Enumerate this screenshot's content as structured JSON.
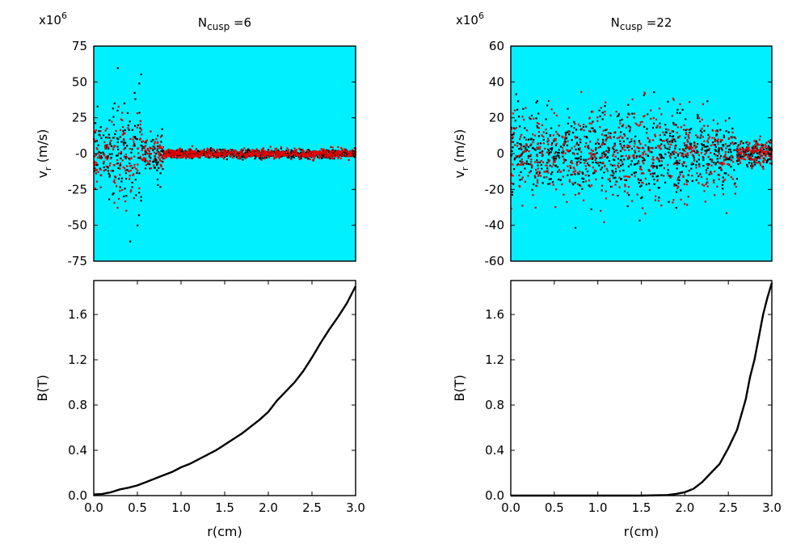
{
  "chart_data": [
    {
      "id": "vr-ncusp6",
      "type": "scatter",
      "title": "N",
      "title_sub": "cusp",
      "title_suffix": " =6",
      "ylabel": "v",
      "ylabel_sub": "r",
      "ylabel_suffix": " (m/s)",
      "multiplier": "x10",
      "multiplier_exp": "6",
      "xlabel": "",
      "xlim": [
        0,
        3
      ],
      "ylim": [
        -75,
        75
      ],
      "yticks": [
        75,
        50,
        25,
        0,
        -25,
        -50,
        -75
      ],
      "ytick_labels": [
        "75",
        "50",
        "25",
        "-0",
        "-25",
        "-50",
        "-75"
      ],
      "xtick_labels": [],
      "background": "#00f0ff",
      "grid": false,
      "series": [
        {
          "color": "#000000",
          "distribution": [
            [
              0.0,
              0.2,
              0,
              14
            ],
            [
              0.2,
              0.4,
              0,
              22
            ],
            [
              0.4,
              0.55,
              0,
              24
            ],
            [
              0.55,
              0.8,
              0,
              10
            ],
            [
              0.8,
              3.0,
              0,
              1.6
            ]
          ]
        },
        {
          "color": "#e00000",
          "distribution": [
            [
              0.0,
              0.2,
              0,
              12
            ],
            [
              0.2,
              0.4,
              0,
              18
            ],
            [
              0.4,
              0.55,
              0,
              18
            ],
            [
              0.55,
              0.8,
              0,
              6
            ],
            [
              0.8,
              3.0,
              0,
              1.8
            ]
          ]
        }
      ],
      "annotation": "Dense scatter of particle radial velocities; broad spread near r < 0.8 cm, narrow band near 0 beyond"
    },
    {
      "id": "vr-ncusp22",
      "type": "scatter",
      "title": "N",
      "title_sub": "cusp",
      "title_suffix": " =22",
      "ylabel": "v",
      "ylabel_sub": "r",
      "ylabel_suffix": " (m/s)",
      "multiplier": "x10",
      "multiplier_exp": "6",
      "xlabel": "",
      "xlim": [
        0,
        3
      ],
      "ylim": [
        -60,
        60
      ],
      "yticks": [
        60,
        40,
        20,
        0,
        -20,
        -40,
        -60
      ],
      "ytick_labels": [
        "60",
        "40",
        "20",
        "0",
        "-20",
        "-40",
        "-60"
      ],
      "xtick_labels": [],
      "background": "#00f0ff",
      "grid": false,
      "series": [
        {
          "color": "#000000",
          "distribution": [
            [
              0.0,
              0.5,
              0,
              12
            ],
            [
              0.5,
              2.0,
              0,
              13
            ],
            [
              2.0,
              2.6,
              0,
              10
            ],
            [
              2.6,
              3.0,
              0,
              4
            ]
          ]
        },
        {
          "color": "#e00000",
          "distribution": [
            [
              0.0,
              0.5,
              0,
              14
            ],
            [
              0.5,
              2.0,
              0,
              15
            ],
            [
              2.0,
              2.6,
              0,
              12
            ],
            [
              2.6,
              3.0,
              0,
              4
            ]
          ]
        }
      ],
      "annotation": "Broad scatter of radial velocities across whole radius, narrowing toward r = 3 cm"
    },
    {
      "id": "b-ncusp6",
      "type": "line",
      "ylabel": "B(T)",
      "xlabel": "r(cm)",
      "xlim": [
        0,
        3
      ],
      "ylim": [
        0,
        1.9
      ],
      "yticks": [
        0.0,
        0.4,
        0.8,
        1.2,
        1.6
      ],
      "ytick_labels": [
        "0.0",
        "0.4",
        "0.8",
        "1.2",
        "1.6"
      ],
      "xticks": [
        0.0,
        0.5,
        1.0,
        1.5,
        2.0,
        2.5,
        3.0
      ],
      "xtick_labels": [
        "0.0",
        "0.5",
        "1.0",
        "1.5",
        "2.0",
        "2.5",
        "3.0"
      ],
      "grid": false,
      "series": [
        {
          "color": "#000000",
          "x": [
            0.0,
            0.1,
            0.2,
            0.3,
            0.4,
            0.5,
            0.6,
            0.7,
            0.8,
            0.9,
            1.0,
            1.1,
            1.2,
            1.3,
            1.4,
            1.5,
            1.6,
            1.7,
            1.8,
            1.9,
            2.0,
            2.1,
            2.2,
            2.3,
            2.4,
            2.5,
            2.6,
            2.7,
            2.8,
            2.9,
            3.0
          ],
          "y": [
            0.01,
            0.015,
            0.03,
            0.055,
            0.07,
            0.09,
            0.12,
            0.15,
            0.18,
            0.21,
            0.25,
            0.28,
            0.32,
            0.36,
            0.4,
            0.45,
            0.5,
            0.55,
            0.61,
            0.67,
            0.74,
            0.84,
            0.92,
            1.0,
            1.1,
            1.22,
            1.35,
            1.47,
            1.58,
            1.7,
            1.85
          ]
        }
      ]
    },
    {
      "id": "b-ncusp22",
      "type": "line",
      "ylabel": "B(T)",
      "xlabel": "r(cm)",
      "xlim": [
        0,
        3
      ],
      "ylim": [
        0,
        1.9
      ],
      "yticks": [
        0.0,
        0.4,
        0.8,
        1.2,
        1.6
      ],
      "ytick_labels": [
        "0.0",
        "0.4",
        "0.8",
        "1.2",
        "1.6"
      ],
      "xticks": [
        0.0,
        0.5,
        1.0,
        1.5,
        2.0,
        2.5,
        3.0
      ],
      "xtick_labels": [
        "0.0",
        "0.5",
        "1.0",
        "1.5",
        "2.0",
        "2.5",
        "3.0"
      ],
      "grid": false,
      "series": [
        {
          "color": "#000000",
          "x": [
            0.0,
            0.5,
            1.0,
            1.5,
            1.8,
            1.9,
            2.0,
            2.1,
            2.2,
            2.3,
            2.4,
            2.5,
            2.6,
            2.7,
            2.75,
            2.8,
            2.85,
            2.9,
            2.95,
            3.0
          ],
          "y": [
            0.0,
            0.0,
            0.0,
            0.0,
            0.005,
            0.015,
            0.03,
            0.06,
            0.12,
            0.2,
            0.28,
            0.42,
            0.58,
            0.85,
            1.05,
            1.2,
            1.4,
            1.6,
            1.75,
            1.88
          ]
        }
      ]
    }
  ]
}
